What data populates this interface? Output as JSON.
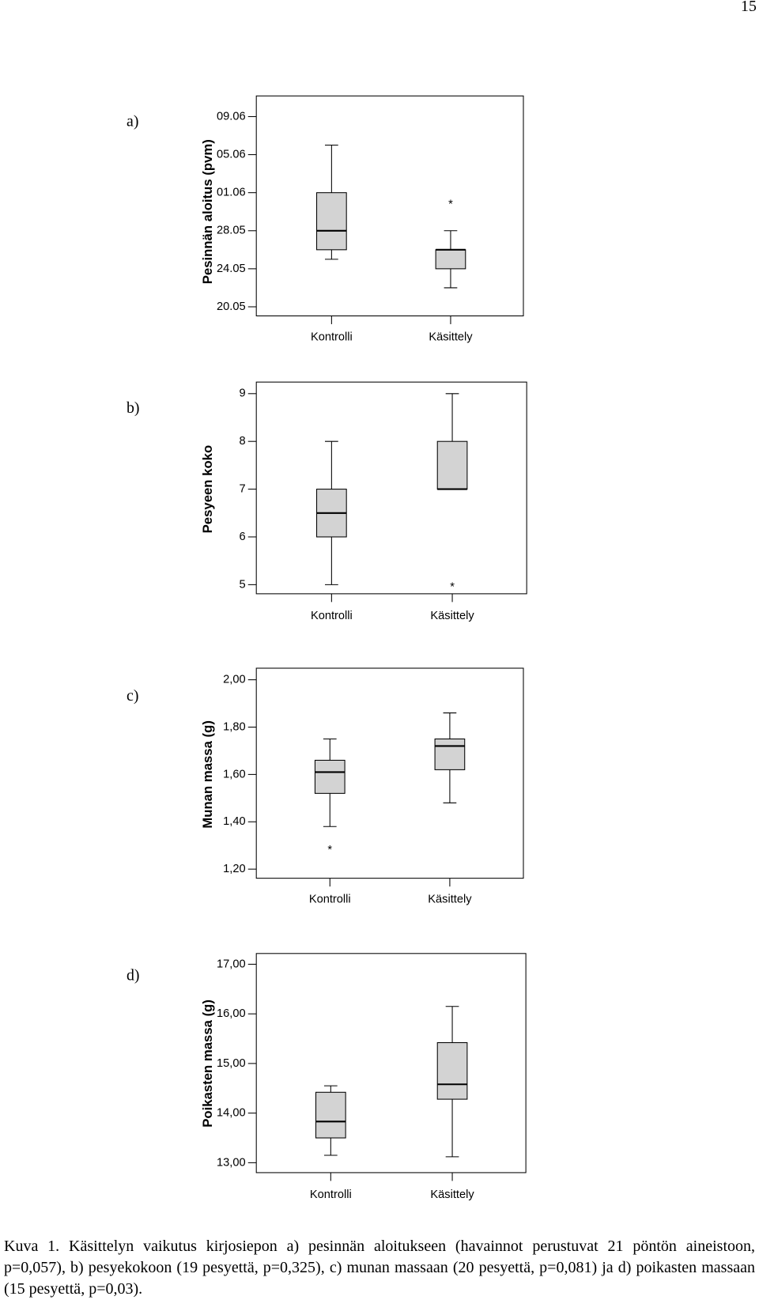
{
  "page_number": "15",
  "chart_data": [
    {
      "type": "box",
      "panel_label": "a)",
      "ylabel": "Pesinnän aloitus (pvm)",
      "categories": [
        "Kontrolli",
        "Käsittely"
      ],
      "ylim": [
        "20.05",
        "09.06"
      ],
      "yticks": [
        "20.05",
        "24.05",
        "28.05",
        "01.06",
        "05.06",
        "09.06"
      ],
      "color": "#d3d3d3",
      "boxes": [
        {
          "min": "25.05",
          "q1": "26.05",
          "median": "28.05",
          "q3": "01.06",
          "max": "06.06",
          "outliers": []
        },
        {
          "min": "22.05",
          "q1": "24.05",
          "median": "26.05",
          "q3": "26.05",
          "max": "28.05",
          "outliers": [
            "31.05"
          ]
        }
      ]
    },
    {
      "type": "box",
      "panel_label": "b)",
      "ylabel": "Pesyeen koko",
      "categories": [
        "Kontrolli",
        "Käsittely"
      ],
      "ylim": [
        5,
        9
      ],
      "yticks": [
        5,
        6,
        7,
        8,
        9
      ],
      "color": "#d3d3d3",
      "boxes": [
        {
          "min": 5,
          "q1": 6,
          "median": 6.5,
          "q3": 7,
          "max": 8,
          "outliers": []
        },
        {
          "min": 7,
          "q1": 7,
          "median": 7,
          "q3": 8,
          "max": 9,
          "outliers": [
            5
          ]
        }
      ]
    },
    {
      "type": "box",
      "panel_label": "c)",
      "ylabel": "Munan massa (g)",
      "categories": [
        "Kontrolli",
        "Käsittely"
      ],
      "ylim": [
        1.2,
        2.0
      ],
      "yticks": [
        {
          "value": 1.2,
          "label": "1,20"
        },
        {
          "value": 1.4,
          "label": "1,40"
        },
        {
          "value": 1.6,
          "label": "1,60"
        },
        {
          "value": 1.8,
          "label": "1,80"
        },
        {
          "value": 2.0,
          "label": "2,00"
        }
      ],
      "color": "#d3d3d3",
      "boxes": [
        {
          "min": 1.38,
          "q1": 1.52,
          "median": 1.61,
          "q3": 1.66,
          "max": 1.75,
          "outliers": [
            1.29
          ]
        },
        {
          "min": 1.48,
          "q1": 1.62,
          "median": 1.72,
          "q3": 1.75,
          "max": 1.86,
          "outliers": []
        }
      ]
    },
    {
      "type": "box",
      "panel_label": "d)",
      "ylabel": "Poikasten massa (g)",
      "categories": [
        "Kontrolli",
        "Käsittely"
      ],
      "ylim": [
        13,
        17
      ],
      "yticks": [
        {
          "value": 13,
          "label": "13,00"
        },
        {
          "value": 14,
          "label": "14,00"
        },
        {
          "value": 15,
          "label": "15,00"
        },
        {
          "value": 16,
          "label": "16,00"
        },
        {
          "value": 17,
          "label": "17,00"
        }
      ],
      "color": "#d3d3d3",
      "boxes": [
        {
          "min": 13.15,
          "q1": 13.5,
          "median": 13.83,
          "q3": 14.42,
          "max": 14.55,
          "outliers": []
        },
        {
          "min": 13.12,
          "q1": 14.28,
          "median": 14.58,
          "q3": 15.42,
          "max": 16.15,
          "outliers": []
        }
      ]
    }
  ],
  "caption": "Kuva 1. Käsittelyn vaikutus kirjosiepon a) pesinnän aloitukseen (havainnot perustuvat 21 pöntön aineistoon, p=0,057), b) pesyekokoon (19 pesyettä, p=0,325), c) munan massaan (20 pesyettä, p=0,081) ja d) poikasten massaan (15 pesyettä, p=0,03)."
}
